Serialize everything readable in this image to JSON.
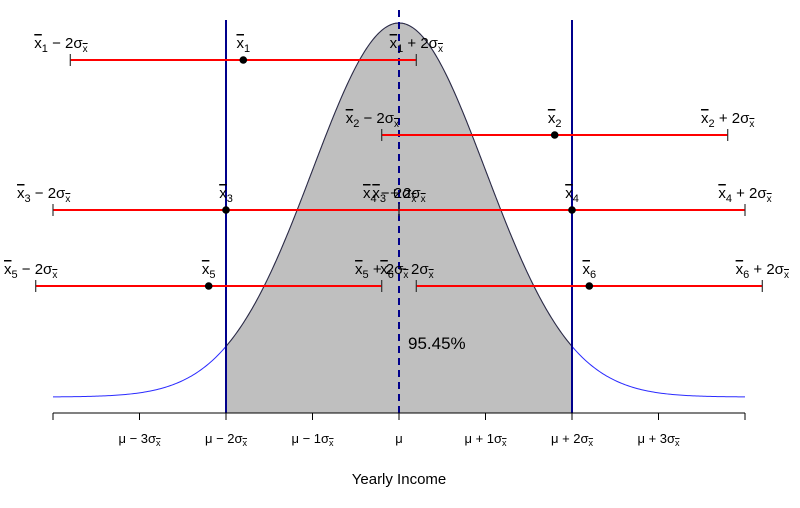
{
  "chart_data": {
    "type": "diagram",
    "xlabel": "Yearly Income",
    "x_range_sigma": [
      -4,
      4
    ],
    "shaded_region_sigma": [
      -2,
      2
    ],
    "shaded_area_label": "95.45%",
    "mean_line_sigma": 0,
    "bound_lines_sigma": [
      -2,
      2
    ],
    "colors": {
      "curve": "#2b2bff",
      "shade": "#bfbfbf",
      "interval": "#ff0000",
      "bounds": "#00008b",
      "mean_line": "#00008b"
    },
    "ticks": [
      {
        "sigma": -3,
        "label": "μ − 3σ",
        "sub": "x̄"
      },
      {
        "sigma": -2,
        "label": "μ − 2σ",
        "sub": "x̄"
      },
      {
        "sigma": -1,
        "label": "μ − 1σ",
        "sub": "x̄"
      },
      {
        "sigma": 0,
        "label": "μ",
        "sub": ""
      },
      {
        "sigma": 1,
        "label": "μ + 1σ",
        "sub": "x̄"
      },
      {
        "sigma": 2,
        "label": "μ + 2σ",
        "sub": "x̄"
      },
      {
        "sigma": 3,
        "label": "μ + 3σ",
        "sub": "x̄"
      }
    ],
    "intervals": [
      {
        "index": "1",
        "mean_sigma": -1.8,
        "lower_label": "x̄1 − 2σx̄",
        "mean_label": "x̄1",
        "upper_label": "x̄1 + 2σx̄"
      },
      {
        "index": "2",
        "mean_sigma": 1.8,
        "lower_label": "x̄2 − 2σx̄",
        "mean_label": "x̄2",
        "upper_label": "x̄2 + 2σx̄"
      },
      {
        "index": "3",
        "mean_sigma": -2.0,
        "lower_label": "x̄3 − 2σx̄",
        "mean_label": "x̄3",
        "upper_label": "x̄3 + 2σx̄"
      },
      {
        "index": "4",
        "mean_sigma": 2.0,
        "lower_label": "x̄4 − 2σx̄",
        "mean_label": "x̄4",
        "upper_label": "x̄4 + 2σx̄"
      },
      {
        "index": "5",
        "mean_sigma": -2.2,
        "lower_label": "x̄5 − 2σx̄",
        "mean_label": "x̄5",
        "upper_label": "x̄5 + 2σx̄"
      },
      {
        "index": "6",
        "mean_sigma": 2.2,
        "lower_label": "x̄6 − 2σx̄",
        "mean_label": "x̄6",
        "upper_label": "x̄6 + 2σx̄"
      }
    ]
  }
}
